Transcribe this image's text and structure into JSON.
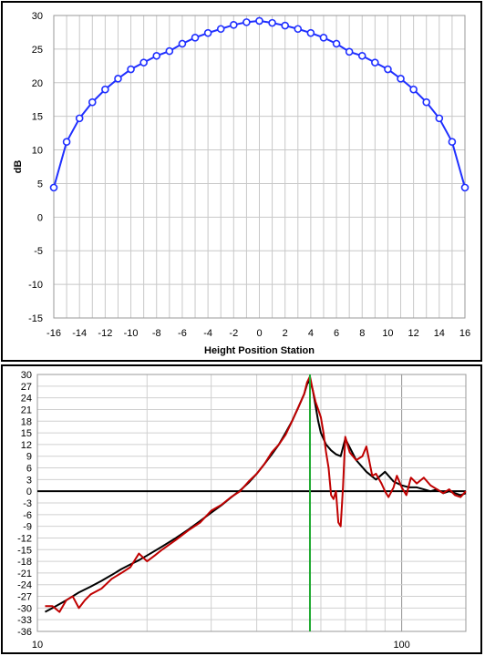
{
  "chart_data": [
    {
      "type": "line",
      "title": "",
      "xlabel": "Height Position Station",
      "ylabel": "dB",
      "xlim": [
        -16,
        16
      ],
      "ylim": [
        -15,
        30
      ],
      "xticks": [
        -16,
        -14,
        -12,
        -10,
        -8,
        -6,
        -4,
        -2,
        0,
        2,
        4,
        6,
        8,
        10,
        12,
        14,
        16
      ],
      "yticks": [
        -15,
        -10,
        -5,
        0,
        5,
        10,
        15,
        20,
        25,
        30
      ],
      "grid": true,
      "line_color": "#1f2fff",
      "marker": "open-circle",
      "series": [
        {
          "x": [
            -16,
            -15,
            -14,
            -13,
            -12,
            -11,
            -10,
            -9,
            -8,
            -7,
            -6,
            -5,
            -4,
            -3,
            -2,
            -1,
            0,
            1,
            2,
            3,
            4,
            5,
            6,
            7,
            8,
            9,
            10,
            11,
            12,
            13,
            14,
            15,
            16
          ],
          "values": [
            4.4,
            11.2,
            14.7,
            17.1,
            19.0,
            20.6,
            22.0,
            23.0,
            24.0,
            24.7,
            25.8,
            26.7,
            27.4,
            28.0,
            28.6,
            29.0,
            29.2,
            28.9,
            28.5,
            28.0,
            27.4,
            26.7,
            25.8,
            24.6,
            24.0,
            23.0,
            22.0,
            20.6,
            19.0,
            17.1,
            14.7,
            11.2,
            4.4
          ]
        }
      ]
    },
    {
      "type": "line",
      "title": "",
      "xlabel": "",
      "ylabel": "",
      "x_scale": "log",
      "xlim": [
        10,
        150
      ],
      "ylim": [
        -36,
        30
      ],
      "xtick_labels": [
        {
          "value": 10,
          "label": "10"
        },
        {
          "value": 100,
          "label": "100"
        }
      ],
      "yticks": [
        30,
        27,
        24,
        21,
        18,
        15,
        12,
        9,
        6,
        3,
        0,
        -3,
        -6,
        -9,
        -12,
        -15,
        -18,
        -21,
        -24,
        -27,
        -30,
        -33,
        -36
      ],
      "grid": true,
      "zero_line": true,
      "vertical_marker": {
        "x": 56,
        "color": "#22aa33"
      },
      "series": [
        {
          "color": "#000000",
          "x": [
            10.5,
            11,
            12,
            13,
            14,
            15,
            16,
            17,
            18,
            19,
            20,
            22,
            24,
            26,
            28,
            30,
            32,
            34,
            36,
            38,
            40,
            42,
            44,
            46,
            48,
            50,
            52,
            54,
            55,
            56,
            57,
            58,
            59,
            60,
            62,
            64,
            66,
            68,
            70,
            75,
            80,
            85,
            90,
            95,
            100,
            105,
            110,
            115,
            120,
            125,
            130,
            135,
            140,
            145,
            150
          ],
          "values": [
            -31,
            -30,
            -28,
            -26,
            -24.5,
            -23,
            -21.5,
            -20,
            -18.8,
            -17.7,
            -16.5,
            -14.2,
            -12,
            -9.8,
            -7.6,
            -5.5,
            -3.6,
            -1.6,
            0.2,
            2.2,
            4.5,
            7,
            9.5,
            12,
            15,
            18,
            21.5,
            25,
            27.5,
            28.5,
            26,
            22,
            18,
            15,
            12,
            10.5,
            9.5,
            9,
            13.5,
            8,
            5,
            3,
            5,
            2.5,
            1.5,
            1,
            1,
            0.5,
            0,
            0.5,
            -0.5,
            0,
            -0.5,
            -1,
            -0.5
          ]
        },
        {
          "color": "#c00000",
          "x": [
            10.5,
            11,
            11.5,
            12,
            12.5,
            13,
            13.5,
            14,
            15,
            16,
            17,
            18,
            19,
            20,
            21,
            22,
            24,
            26,
            28,
            30,
            32,
            34,
            36,
            38,
            40,
            42,
            44,
            46,
            48,
            50,
            52,
            54,
            55,
            56,
            57,
            58,
            59,
            60,
            61,
            62,
            63,
            64,
            65,
            66,
            67,
            68,
            69,
            70,
            72,
            75,
            78,
            80,
            83,
            85,
            88,
            90,
            92,
            95,
            97,
            100,
            103,
            106,
            110,
            115,
            120,
            125,
            130,
            135,
            140,
            145,
            150
          ],
          "values": [
            -29.5,
            -29.5,
            -31,
            -28,
            -27,
            -30,
            -28,
            -26.5,
            -25,
            -22.5,
            -21,
            -19.5,
            -16,
            -18,
            -16.5,
            -15,
            -12.5,
            -10,
            -8,
            -5,
            -3.5,
            -1.5,
            0,
            2.5,
            4.5,
            7,
            10,
            12,
            14.5,
            18,
            21.5,
            25,
            28,
            29.5,
            26,
            23,
            21,
            19,
            15,
            10,
            6,
            -1,
            -2,
            0,
            -8,
            -9,
            1,
            14,
            10,
            8,
            9,
            11.5,
            4,
            4.5,
            2,
            0,
            -1.5,
            1,
            4,
            1,
            -1,
            3.5,
            2,
            3.5,
            1.5,
            0.5,
            -0.5,
            0.5,
            -1,
            -1.5,
            0
          ]
        }
      ]
    }
  ]
}
